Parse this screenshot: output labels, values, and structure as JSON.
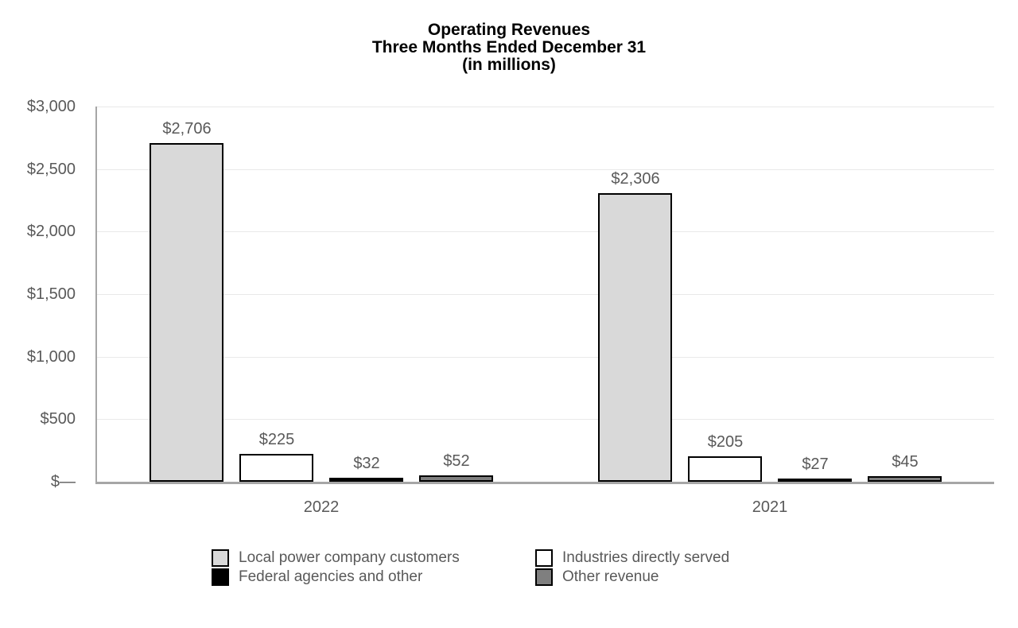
{
  "title": {
    "line1": "Operating Revenues",
    "line2": "Three Months Ended December 31",
    "line3": "(in millions)"
  },
  "chart_data": {
    "type": "bar",
    "title": "Operating Revenues Three Months Ended December 31 (in millions)",
    "categories": [
      "2022",
      "2021"
    ],
    "series": [
      {
        "name": "Local power company customers",
        "values": [
          2706,
          2306
        ],
        "labels": [
          "$2,706",
          "$2,306"
        ],
        "color": "#d9d9d9"
      },
      {
        "name": "Industries directly served",
        "values": [
          225,
          205
        ],
        "labels": [
          "$225",
          "$205"
        ],
        "color": "#ffffff"
      },
      {
        "name": "Federal agencies and other",
        "values": [
          32,
          27
        ],
        "labels": [
          "$32",
          "$27"
        ],
        "color": "#000000"
      },
      {
        "name": "Other revenue",
        "values": [
          52,
          45
        ],
        "labels": [
          "$52",
          "$45"
        ],
        "color": "#7f7f7f"
      }
    ],
    "y_axis": {
      "min": 0,
      "max": 3000,
      "tick_values": [
        3000,
        2500,
        2000,
        1500,
        1000,
        500,
        0
      ],
      "tick_labels": [
        "$3,000",
        "$2,500",
        "$2,000",
        "$1,500",
        "$1,000",
        "$500",
        "$—"
      ]
    },
    "grid": true,
    "legend_position": "bottom",
    "colors": {
      "bar_border": "#000000",
      "axis": "#a6a6a6",
      "gridline": "#e9e9e9",
      "label_text": "#595959",
      "title_text": "#000000",
      "background": "#ffffff"
    }
  }
}
